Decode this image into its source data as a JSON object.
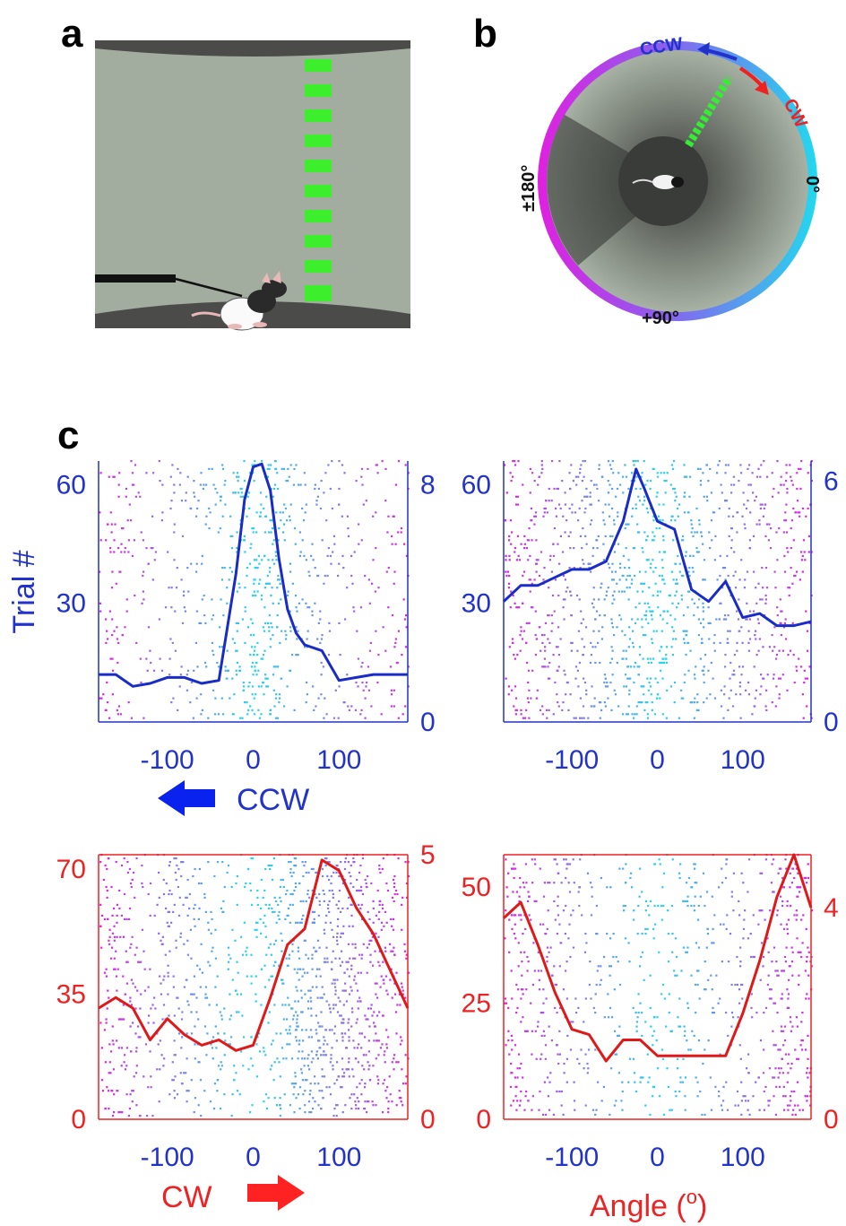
{
  "panel_labels": {
    "a": "a",
    "b": "b",
    "c": "c"
  },
  "colors": {
    "ccw": "#2233cc",
    "cw": "#ee2222",
    "cyan": "#22d8ee",
    "magenta": "#e020e0",
    "green": "#33ee33",
    "arena": "#9fa99c"
  },
  "panel_b": {
    "ccw_label": "CCW",
    "cw_label": "CW",
    "angle_right": "0°",
    "angle_left": "±180°",
    "angle_bottom": "+90°"
  },
  "panel_c": {
    "ccw_text": "CCW",
    "cw_text": "CW",
    "trial_label": "Trial #",
    "angle_label_main": "Angle (",
    "angle_label_sup": "o",
    "angle_label_close": ")"
  },
  "chart_data": [
    {
      "type": "scatter",
      "title": "",
      "ylabel": "Trial #",
      "xticks": [
        "-100",
        "0",
        "100"
      ],
      "xlim": [
        -180,
        180
      ],
      "ylim_left": [
        0,
        66
      ],
      "yticks_left": [
        "30",
        "60"
      ],
      "ylim_right": [
        0,
        8.8
      ],
      "yticks_right": [
        "0",
        "8"
      ],
      "color": "#2233cc",
      "direction": "CCW",
      "curve": {
        "x": [
          -180,
          -160,
          -140,
          -120,
          -100,
          -80,
          -60,
          -40,
          -20,
          -10,
          0,
          10,
          20,
          30,
          40,
          50,
          60,
          80,
          100,
          120,
          140,
          160,
          180
        ],
        "y": [
          1.6,
          1.6,
          1.2,
          1.3,
          1.5,
          1.5,
          1.3,
          1.4,
          5.0,
          7.5,
          8.6,
          8.7,
          7.8,
          5.5,
          3.8,
          3.0,
          2.6,
          2.4,
          1.4,
          1.5,
          1.6,
          1.6,
          1.6
        ]
      }
    },
    {
      "type": "scatter",
      "title": "",
      "xticks": [
        "-100",
        "0",
        "100"
      ],
      "xlim": [
        -180,
        180
      ],
      "ylim_left": [
        0,
        66
      ],
      "yticks_left": [
        "30",
        "60"
      ],
      "ylim_right": [
        0,
        6.5
      ],
      "yticks_right": [
        "0",
        "6"
      ],
      "color": "#2233cc",
      "direction": "CCW",
      "curve": {
        "x": [
          -180,
          -160,
          -140,
          -120,
          -100,
          -80,
          -60,
          -40,
          -25,
          -15,
          0,
          20,
          40,
          60,
          80,
          100,
          120,
          140,
          160,
          180
        ],
        "y": [
          3.0,
          3.4,
          3.4,
          3.6,
          3.8,
          3.8,
          4.0,
          5.0,
          6.3,
          5.8,
          5.0,
          4.8,
          3.3,
          3.0,
          3.5,
          2.6,
          2.7,
          2.4,
          2.4,
          2.5
        ]
      }
    },
    {
      "type": "scatter",
      "title": "",
      "xticks": [
        "-100",
        "0",
        "100"
      ],
      "xlim": [
        -180,
        180
      ],
      "ylim_left": [
        0,
        74
      ],
      "yticks_left": [
        "35",
        "70"
      ],
      "ylim_right": [
        0,
        5
      ],
      "yticks_right": [
        "0",
        "5"
      ],
      "color": "#ee2222",
      "direction": "CW",
      "curve": {
        "x": [
          -180,
          -160,
          -140,
          -120,
          -100,
          -80,
          -60,
          -40,
          -20,
          0,
          20,
          40,
          60,
          80,
          100,
          120,
          140,
          160,
          180
        ],
        "y": [
          2.1,
          2.3,
          2.1,
          1.5,
          1.9,
          1.6,
          1.4,
          1.5,
          1.3,
          1.4,
          2.3,
          3.3,
          3.6,
          4.9,
          4.7,
          4.0,
          3.5,
          2.8,
          2.1
        ]
      }
    },
    {
      "type": "scatter",
      "title": "",
      "xlabel": "Angle (o)",
      "xticks": [
        "-100",
        "0",
        "100"
      ],
      "xlim": [
        -180,
        180
      ],
      "ylim_left": [
        0,
        57
      ],
      "yticks_left": [
        "25",
        "50"
      ],
      "ylim_right": [
        0,
        5
      ],
      "yticks_right": [
        "0",
        "4"
      ],
      "color": "#ee2222",
      "curve": {
        "x": [
          -180,
          -160,
          -140,
          -120,
          -100,
          -80,
          -60,
          -40,
          -20,
          0,
          20,
          40,
          60,
          80,
          100,
          120,
          140,
          160,
          180
        ],
        "y": [
          3.8,
          4.1,
          3.3,
          2.4,
          1.7,
          1.6,
          1.1,
          1.5,
          1.5,
          1.2,
          1.2,
          1.2,
          1.2,
          1.2,
          2.0,
          3.0,
          4.2,
          5.0,
          4.0
        ]
      }
    }
  ]
}
